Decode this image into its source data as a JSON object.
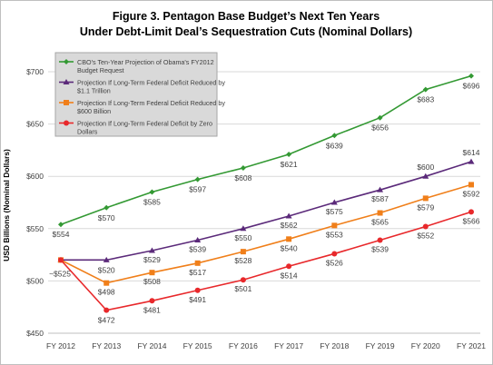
{
  "chart_data": {
    "type": "line",
    "title": "Figure 3.  Pentagon Base Budget’s Next Ten Years",
    "subtitle": "Under Debt-Limit Deal’s Sequestration Cuts (Nominal Dollars)",
    "xlabel": "",
    "ylabel": "USD Billions (Nominal Dollars)",
    "ylim": [
      450,
      700
    ],
    "yticks": [
      "$450",
      "$500",
      "$550",
      "$600",
      "$650",
      "$700"
    ],
    "yticks_values": [
      450,
      500,
      550,
      600,
      650,
      700
    ],
    "categories": [
      "FY 2012",
      "FY 2013",
      "FY 2014",
      "FY 2015",
      "FY 2016",
      "FY 2017",
      "FY 2018",
      "FY 2019",
      "FY 2020",
      "FY 2021"
    ],
    "grid": "horizontal",
    "legend_position": "top-left",
    "series": [
      {
        "name": "CBO's Ten-Year Projection of Obama's FY2012 Budget Request",
        "legend_lines": [
          "CBO's Ten-Year Projection of Obama's FY2012",
          "Budget Request"
        ],
        "color": "#339933",
        "marker": "diamond",
        "values": [
          554,
          570,
          585,
          597,
          608,
          621,
          639,
          656,
          683,
          696
        ],
        "labels": [
          "$554",
          "$570",
          "$585",
          "$597",
          "$608",
          "$621",
          "$639",
          "$656",
          "$683",
          "$696"
        ]
      },
      {
        "name": "Projection If Long-Term Federal Deficit Reduced by $1.1 Trillion",
        "legend_lines": [
          "Projection If Long-Term Federal Deficit Reduced by",
          "$1.1 Trillion"
        ],
        "color": "#5b2a7a",
        "marker": "triangle",
        "values": [
          520,
          520,
          529,
          539,
          550,
          562,
          575,
          587,
          600,
          614
        ],
        "labels": [
          "",
          "$520",
          "$529",
          "$539",
          "$550",
          "$562",
          "$575",
          "$587",
          "$600",
          "$614"
        ]
      },
      {
        "name": "Projection If Long-Term Federal Deficit Reduced by $600 Billion",
        "legend_lines": [
          "Projection If Long-Term Federal Deficit Reduced by",
          "$600 Billion"
        ],
        "color": "#f07f1a",
        "marker": "square",
        "values": [
          520,
          498,
          508,
          517,
          528,
          540,
          553,
          565,
          579,
          592
        ],
        "labels": [
          "",
          "$498",
          "$508",
          "$517",
          "$528",
          "$540",
          "$553",
          "$565",
          "$579",
          "$592"
        ]
      },
      {
        "name": "Projection If Long-Term Federal Deficit by Zero Dollars",
        "legend_lines": [
          "Projection If Long-Term Federal Deficit by Zero",
          "Dollars"
        ],
        "color": "#e8282b",
        "marker": "circle",
        "values": [
          520,
          472,
          481,
          491,
          501,
          514,
          526,
          539,
          552,
          566
        ],
        "labels": [
          "",
          "$472",
          "$481",
          "$491",
          "$501",
          "$514",
          "$526",
          "$539",
          "$552",
          "$566"
        ]
      }
    ],
    "annotations": [
      {
        "text": "~$525",
        "x": "FY 2012",
        "y": 520
      }
    ]
  }
}
